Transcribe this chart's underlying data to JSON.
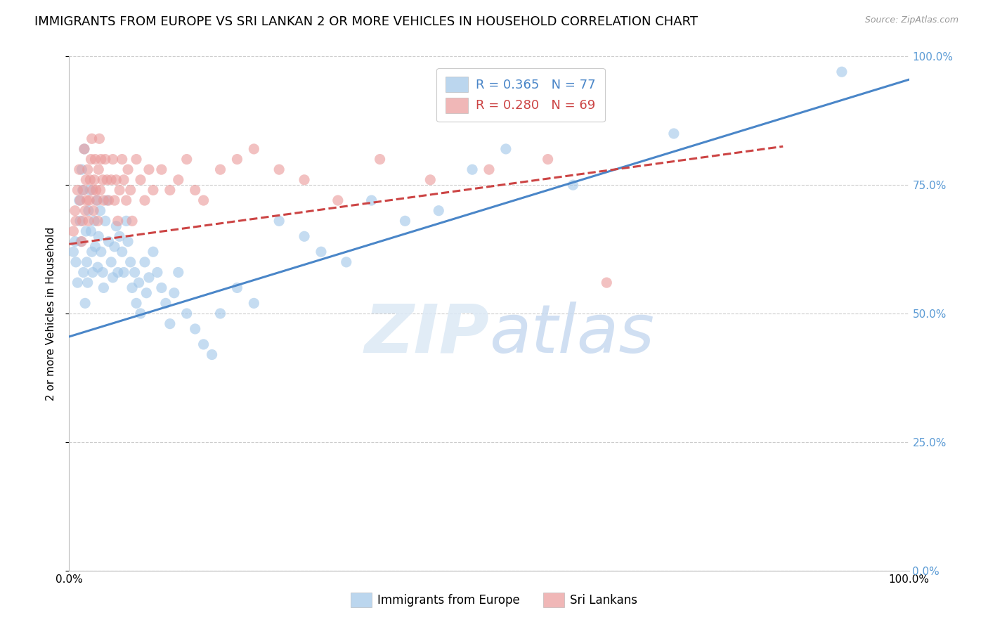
{
  "title": "IMMIGRANTS FROM EUROPE VS SRI LANKAN 2 OR MORE VEHICLES IN HOUSEHOLD CORRELATION CHART",
  "source": "Source: ZipAtlas.com",
  "ylabel": "2 or more Vehicles in Household",
  "xlim": [
    0.0,
    1.0
  ],
  "ylim": [
    0.0,
    1.0
  ],
  "ytick_labels": [
    "0.0%",
    "25.0%",
    "50.0%",
    "75.0%",
    "100.0%"
  ],
  "ytick_values": [
    0.0,
    0.25,
    0.5,
    0.75,
    1.0
  ],
  "xtick_labels": [
    "0.0%",
    "100.0%"
  ],
  "legend_europe_r": "R = 0.365",
  "legend_europe_n": "N = 77",
  "legend_sri_r": "R = 0.280",
  "legend_sri_n": "N = 69",
  "europe_color": "#9fc5e8",
  "sri_color": "#ea9999",
  "europe_line_color": "#4a86c8",
  "sri_line_color": "#cc4444",
  "title_fontsize": 13,
  "axis_label_fontsize": 11,
  "tick_fontsize": 11,
  "europe_scatter_x": [
    0.005,
    0.007,
    0.008,
    0.01,
    0.012,
    0.013,
    0.014,
    0.015,
    0.016,
    0.017,
    0.018,
    0.019,
    0.02,
    0.021,
    0.022,
    0.023,
    0.025,
    0.026,
    0.027,
    0.028,
    0.03,
    0.031,
    0.033,
    0.034,
    0.035,
    0.037,
    0.038,
    0.04,
    0.041,
    0.043,
    0.045,
    0.047,
    0.05,
    0.052,
    0.054,
    0.056,
    0.058,
    0.06,
    0.063,
    0.065,
    0.068,
    0.07,
    0.073,
    0.075,
    0.078,
    0.08,
    0.083,
    0.085,
    0.09,
    0.092,
    0.095,
    0.1,
    0.105,
    0.11,
    0.115,
    0.12,
    0.125,
    0.13,
    0.14,
    0.15,
    0.16,
    0.17,
    0.18,
    0.2,
    0.22,
    0.25,
    0.28,
    0.3,
    0.33,
    0.36,
    0.4,
    0.44,
    0.48,
    0.52,
    0.6,
    0.72,
    0.92
  ],
  "europe_scatter_y": [
    0.62,
    0.64,
    0.6,
    0.56,
    0.72,
    0.68,
    0.64,
    0.78,
    0.74,
    0.58,
    0.82,
    0.52,
    0.66,
    0.6,
    0.56,
    0.7,
    0.74,
    0.66,
    0.62,
    0.58,
    0.68,
    0.63,
    0.72,
    0.59,
    0.65,
    0.7,
    0.62,
    0.58,
    0.55,
    0.68,
    0.72,
    0.64,
    0.6,
    0.57,
    0.63,
    0.67,
    0.58,
    0.65,
    0.62,
    0.58,
    0.68,
    0.64,
    0.6,
    0.55,
    0.58,
    0.52,
    0.56,
    0.5,
    0.6,
    0.54,
    0.57,
    0.62,
    0.58,
    0.55,
    0.52,
    0.48,
    0.54,
    0.58,
    0.5,
    0.47,
    0.44,
    0.42,
    0.5,
    0.55,
    0.52,
    0.68,
    0.65,
    0.62,
    0.6,
    0.72,
    0.68,
    0.7,
    0.78,
    0.82,
    0.75,
    0.85,
    0.97
  ],
  "sri_scatter_x": [
    0.005,
    0.007,
    0.008,
    0.01,
    0.012,
    0.013,
    0.015,
    0.016,
    0.017,
    0.018,
    0.019,
    0.02,
    0.021,
    0.022,
    0.023,
    0.024,
    0.025,
    0.026,
    0.027,
    0.028,
    0.029,
    0.03,
    0.031,
    0.032,
    0.033,
    0.034,
    0.035,
    0.036,
    0.037,
    0.038,
    0.04,
    0.041,
    0.043,
    0.045,
    0.047,
    0.05,
    0.052,
    0.054,
    0.056,
    0.058,
    0.06,
    0.063,
    0.065,
    0.068,
    0.07,
    0.073,
    0.075,
    0.08,
    0.085,
    0.09,
    0.095,
    0.1,
    0.11,
    0.12,
    0.13,
    0.14,
    0.15,
    0.16,
    0.18,
    0.2,
    0.22,
    0.25,
    0.28,
    0.32,
    0.37,
    0.43,
    0.5,
    0.57,
    0.64
  ],
  "sri_scatter_y": [
    0.66,
    0.7,
    0.68,
    0.74,
    0.78,
    0.72,
    0.64,
    0.68,
    0.74,
    0.82,
    0.7,
    0.76,
    0.72,
    0.78,
    0.68,
    0.72,
    0.76,
    0.8,
    0.84,
    0.74,
    0.7,
    0.76,
    0.8,
    0.74,
    0.72,
    0.68,
    0.78,
    0.84,
    0.74,
    0.8,
    0.76,
    0.72,
    0.8,
    0.76,
    0.72,
    0.76,
    0.8,
    0.72,
    0.76,
    0.68,
    0.74,
    0.8,
    0.76,
    0.72,
    0.78,
    0.74,
    0.68,
    0.8,
    0.76,
    0.72,
    0.78,
    0.74,
    0.78,
    0.74,
    0.76,
    0.8,
    0.74,
    0.72,
    0.78,
    0.8,
    0.82,
    0.78,
    0.76,
    0.72,
    0.8,
    0.76,
    0.78,
    0.8,
    0.56
  ],
  "europe_trend_x": [
    0.0,
    1.0
  ],
  "europe_trend_y": [
    0.455,
    0.955
  ],
  "sri_trend_x": [
    0.0,
    0.85
  ],
  "sri_trend_y": [
    0.635,
    0.825
  ],
  "background_color": "#ffffff",
  "grid_color": "#cccccc",
  "right_tick_color": "#5b9bd5"
}
